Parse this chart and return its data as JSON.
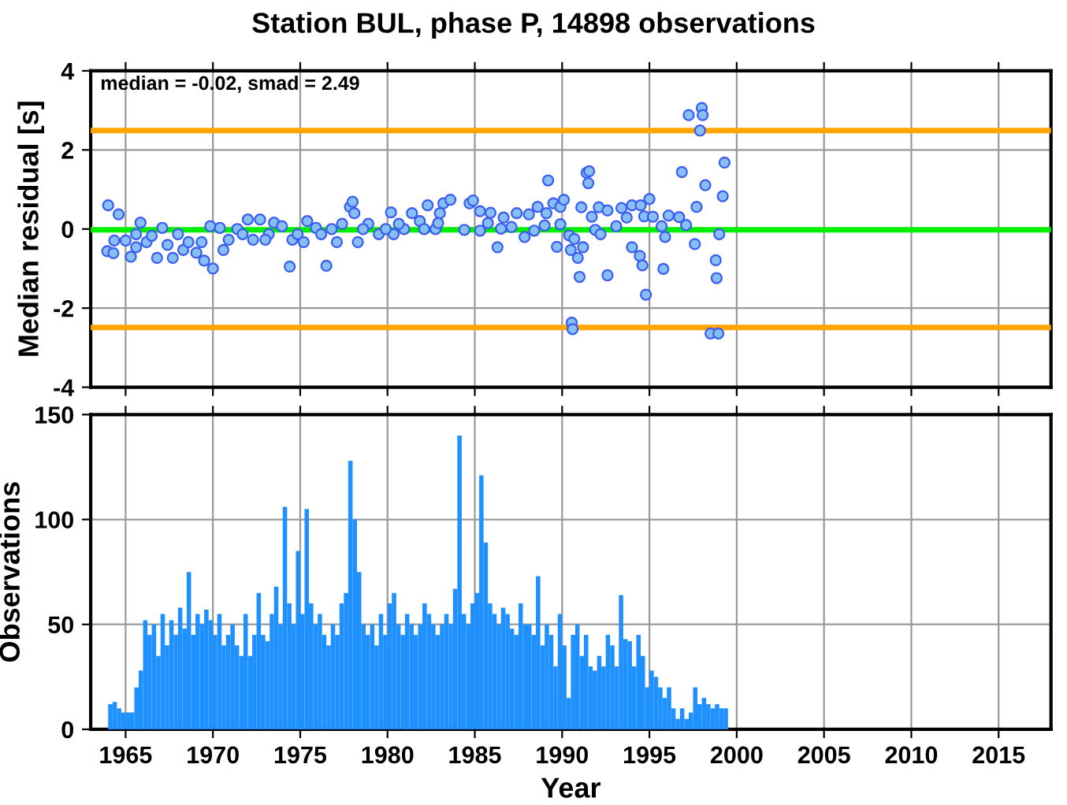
{
  "chart_data": [
    {
      "type": "scatter",
      "title": "Station BUL, phase P, 14898 observations",
      "ylabel": "Median residual [s]",
      "annotations": [
        "median = -0.02, smad = 2.49"
      ],
      "x": [
        1964.0,
        1964.6,
        1963.95,
        1964.3,
        1964.35,
        1965.0,
        1965.3,
        1965.85,
        1965.6,
        1966.2,
        1966.5,
        1966.8,
        1967.1,
        1967.4,
        1968.0,
        1968.3,
        1968.6,
        1969.05,
        1969.5,
        1970.0,
        1969.85,
        1970.4,
        1970.6,
        1970.9,
        1971.4,
        1972.0,
        1972.3,
        1972.7,
        1973.2,
        1973.5,
        1973.95,
        1974.4,
        1974.55,
        1974.85,
        1975.4,
        1975.9,
        1976.5,
        1976.8,
        1977.4,
        1977.85,
        1978.0,
        1978.1,
        1978.3,
        1978.9,
        1979.5,
        1980.2,
        1980.35,
        1980.95,
        1981.4,
        1981.85,
        1982.3,
        1982.75,
        1983.0,
        1965.6,
        1967.7,
        1969.35,
        1971.7,
        1973.0,
        1975.2,
        1976.2,
        1977.1,
        1978.6,
        1979.9,
        1980.65,
        1982.1,
        1983.2,
        1983.6,
        1984.7,
        1984.9,
        1985.3,
        1985.9,
        1986.65,
        1987.4,
        1987.85,
        1988.1,
        1988.4,
        1989.0,
        1982.9,
        1984.4,
        1985.75,
        1987.1,
        1986.5,
        1985.3,
        1989.1,
        1986.3,
        1988.6,
        1989.2,
        1989.5,
        1989.7,
        1989.9,
        1989.9,
        1990.1,
        1990.4,
        1990.5,
        1990.55,
        1990.6,
        1990.7,
        1990.9,
        1991.0,
        1991.1,
        1991.2,
        1991.4,
        1991.5,
        1991.55,
        1991.7,
        1991.9,
        1992.1,
        1992.2,
        1992.6,
        1992.6,
        1993.1,
        1993.4,
        1993.7,
        1994.0,
        1994.0,
        1994.45,
        1994.5,
        1994.6,
        1994.7,
        1994.8,
        1995.0,
        1995.2,
        1995.7,
        1995.8,
        1995.9,
        1996.1,
        1996.7,
        1996.86,
        1997.1,
        1997.25,
        1997.6,
        1997.7,
        1997.9,
        1998.0,
        1998.05,
        1998.2,
        1998.5,
        1998.8,
        1998.85,
        1998.95,
        1999.0,
        1999.2,
        1999.3
      ],
      "values": [
        0.6,
        0.37,
        -0.56,
        -0.61,
        -0.29,
        -0.29,
        -0.7,
        0.16,
        -0.46,
        -0.33,
        -0.17,
        -0.73,
        0.03,
        -0.4,
        -0.13,
        -0.53,
        -0.33,
        -0.6,
        -0.8,
        -1.0,
        0.07,
        0.03,
        -0.53,
        -0.27,
        0.0,
        0.24,
        -0.27,
        0.24,
        -0.13,
        0.16,
        0.07,
        -0.95,
        -0.27,
        -0.13,
        0.2,
        0.03,
        -0.93,
        0.0,
        0.13,
        0.56,
        0.69,
        0.4,
        -0.33,
        0.13,
        -0.13,
        0.42,
        -0.13,
        0.0,
        0.4,
        0.2,
        0.6,
        0.0,
        0.4,
        -0.13,
        -0.73,
        -0.33,
        -0.13,
        -0.27,
        -0.33,
        -0.13,
        -0.33,
        0.0,
        0.0,
        0.13,
        0.0,
        0.65,
        0.74,
        0.65,
        0.72,
        0.45,
        0.41,
        0.29,
        0.4,
        -0.2,
        0.37,
        -0.04,
        0.09,
        0.15,
        -0.02,
        0.15,
        0.05,
        0.01,
        -0.04,
        0.4,
        -0.46,
        0.56,
        1.23,
        0.65,
        -0.45,
        0.56,
        0.12,
        0.74,
        -0.16,
        -0.53,
        -2.37,
        -2.53,
        -0.25,
        -0.73,
        -1.21,
        0.55,
        -0.46,
        1.42,
        1.16,
        1.46,
        0.31,
        -0.02,
        0.55,
        -0.13,
        0.47,
        -1.17,
        0.07,
        0.53,
        0.29,
        0.6,
        -0.46,
        -0.68,
        0.6,
        -0.92,
        0.32,
        -1.66,
        0.76,
        0.31,
        0.07,
        -1.01,
        -0.2,
        0.34,
        0.3,
        1.44,
        0.1,
        2.88,
        -0.38,
        0.56,
        2.49,
        3.06,
        2.88,
        1.11,
        -2.64,
        -0.79,
        -1.24,
        -2.64,
        -0.13,
        0.83,
        1.68
      ],
      "color": "#87bff5",
      "marker": "circle",
      "xlim": [
        1963,
        2018
      ],
      "xticks": [
        1965,
        1970,
        1975,
        1980,
        1985,
        1990,
        1995,
        2000,
        2005,
        2010,
        2015
      ],
      "ylim": [
        -4,
        4
      ],
      "yticks": [
        -4,
        -2,
        0,
        2,
        4
      ],
      "grid": true,
      "tick_labels": "y",
      "ref_lines": [
        {
          "axis": "y",
          "value": -0.02,
          "color": "#00ee00"
        },
        {
          "axis": "y",
          "value": 2.49,
          "color": "#ffa500"
        },
        {
          "axis": "y",
          "value": -2.49,
          "color": "#ffa500"
        }
      ]
    },
    {
      "type": "bar",
      "xlabel": "Year",
      "ylabel": "Observations",
      "color": "#1e90ff",
      "x": [
        1964.125,
        1964.375,
        1964.625,
        1964.875,
        1965.125,
        1965.375,
        1965.625,
        1965.875,
        1966.125,
        1966.375,
        1966.625,
        1966.875,
        1967.125,
        1967.375,
        1967.625,
        1967.875,
        1968.125,
        1968.375,
        1968.625,
        1968.875,
        1969.125,
        1969.375,
        1969.625,
        1969.875,
        1970.125,
        1970.375,
        1970.625,
        1970.875,
        1971.125,
        1971.375,
        1971.625,
        1971.875,
        1972.125,
        1972.375,
        1972.625,
        1972.875,
        1973.125,
        1973.375,
        1973.625,
        1973.875,
        1974.125,
        1974.375,
        1974.625,
        1974.875,
        1975.125,
        1975.375,
        1975.625,
        1975.875,
        1976.125,
        1976.375,
        1976.625,
        1976.875,
        1977.125,
        1977.375,
        1977.625,
        1977.875,
        1978.125,
        1978.375,
        1978.625,
        1978.875,
        1979.125,
        1979.375,
        1979.625,
        1979.875,
        1980.125,
        1980.375,
        1980.625,
        1980.875,
        1981.125,
        1981.375,
        1981.625,
        1981.875,
        1982.125,
        1982.375,
        1982.625,
        1982.875,
        1983.125,
        1983.375,
        1983.625,
        1983.875,
        1984.125,
        1984.375,
        1984.625,
        1984.875,
        1985.125,
        1985.375,
        1985.625,
        1985.875,
        1986.125,
        1986.375,
        1986.625,
        1986.875,
        1987.125,
        1987.375,
        1987.625,
        1987.875,
        1988.125,
        1988.375,
        1988.625,
        1988.875,
        1989.125,
        1989.375,
        1989.625,
        1989.875,
        1990.125,
        1990.375,
        1990.625,
        1990.875,
        1991.125,
        1991.375,
        1991.625,
        1991.875,
        1992.125,
        1992.375,
        1992.625,
        1992.875,
        1993.125,
        1993.375,
        1993.625,
        1993.875,
        1994.125,
        1994.375,
        1994.625,
        1994.875,
        1995.125,
        1995.375,
        1995.625,
        1995.875,
        1996.125,
        1996.375,
        1996.625,
        1996.875,
        1997.125,
        1997.375,
        1997.625,
        1997.875,
        1998.125,
        1998.375,
        1998.625,
        1998.875,
        1999.125,
        1999.375
      ],
      "values": [
        12,
        13,
        10,
        8,
        8,
        8,
        20,
        28,
        52,
        45,
        50,
        35,
        55,
        40,
        52,
        45,
        58,
        48,
        75,
        45,
        55,
        50,
        57,
        52,
        45,
        55,
        40,
        45,
        50,
        40,
        35,
        55,
        35,
        45,
        65,
        45,
        42,
        55,
        68,
        50,
        106,
        60,
        50,
        85,
        55,
        105,
        60,
        50,
        55,
        45,
        40,
        50,
        45,
        60,
        65,
        128,
        100,
        75,
        50,
        45,
        50,
        40,
        55,
        45,
        60,
        65,
        50,
        45,
        55,
        50,
        45,
        50,
        60,
        55,
        50,
        45,
        50,
        55,
        50,
        67,
        140,
        55,
        50,
        60,
        65,
        121,
        89,
        60,
        55,
        50,
        58,
        55,
        48,
        45,
        60,
        50,
        50,
        45,
        73,
        40,
        50,
        45,
        30,
        55,
        40,
        15,
        45,
        50,
        35,
        45,
        30,
        28,
        35,
        30,
        45,
        40,
        30,
        64,
        43,
        42,
        30,
        45,
        35,
        20,
        28,
        25,
        20,
        15,
        20,
        10,
        5,
        10,
        5,
        8,
        20,
        12,
        15,
        12,
        10,
        12,
        10,
        10
      ],
      "xlim": [
        1963,
        2018
      ],
      "xticks": [
        1965,
        1970,
        1975,
        1980,
        1985,
        1990,
        1995,
        2000,
        2005,
        2010,
        2015
      ],
      "ylim": [
        0,
        150
      ],
      "yticks": [
        0,
        50,
        100,
        150
      ],
      "grid": true
    }
  ]
}
